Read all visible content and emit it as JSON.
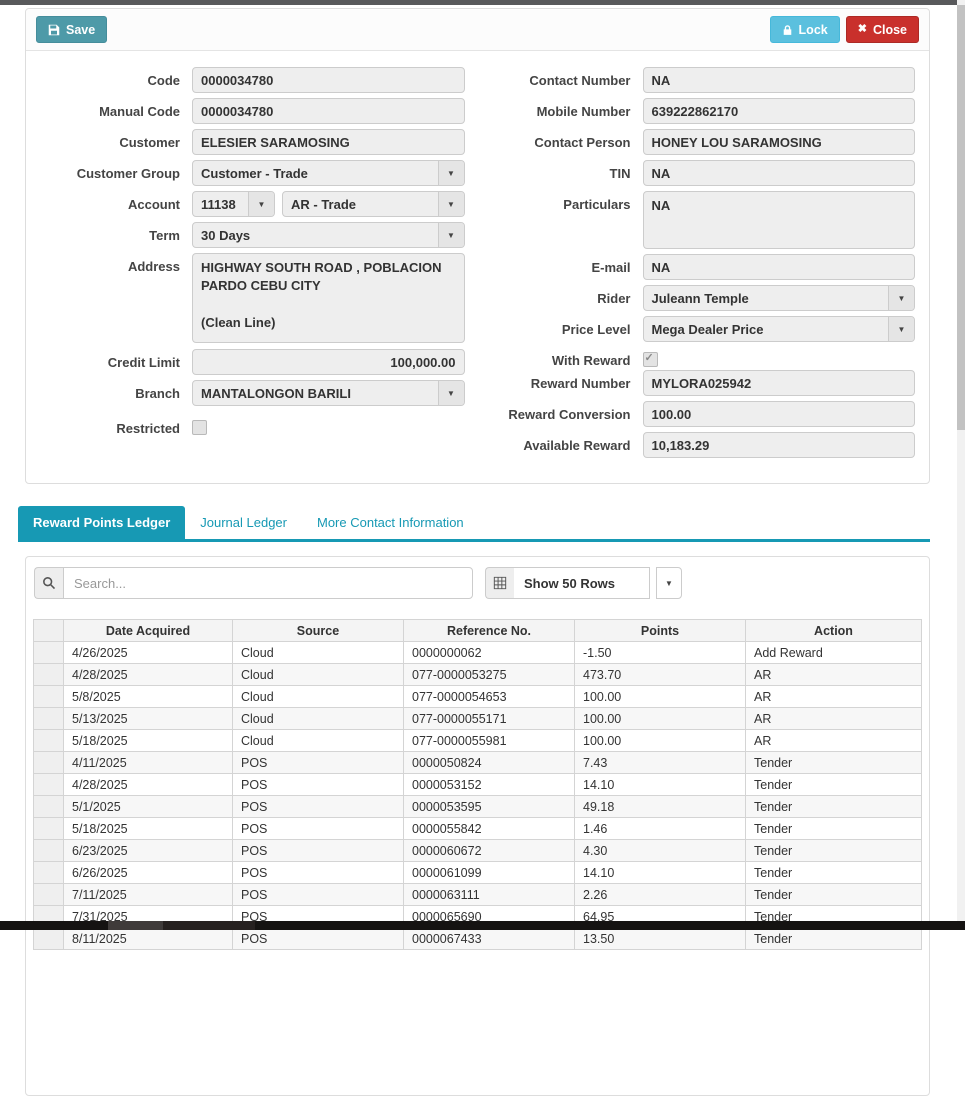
{
  "toolbar": {
    "save": "Save",
    "lock": "Lock",
    "close": "Close"
  },
  "colors": {
    "accent": "#1799b4",
    "save_button": "#4e9aa8",
    "lock_button": "#5bc0de",
    "close_button": "#c9302c"
  },
  "icons": {
    "save": "floppy-disk",
    "lock": "padlock",
    "close": "x-mark",
    "search": "magnifier",
    "rows": "table-grid",
    "dropdown": "chevron-down",
    "close_glyph": "✖",
    "caret_glyph": "▼"
  },
  "form": {
    "code": {
      "label": "Code",
      "value": "0000034780"
    },
    "manual_code": {
      "label": "Manual Code",
      "value": "0000034780"
    },
    "customer": {
      "label": "Customer",
      "value": "ELESIER SARAMOSING"
    },
    "customer_group": {
      "label": "Customer Group",
      "value": "Customer - Trade"
    },
    "account": {
      "label": "Account",
      "code": "11138",
      "name": "AR - Trade"
    },
    "term": {
      "label": "Term",
      "value": "30 Days"
    },
    "address": {
      "label": "Address",
      "value": "HIGHWAY SOUTH ROAD , POBLACION PARDO CEBU CITY\n\n(Clean Line)"
    },
    "credit_limit": {
      "label": "Credit Limit",
      "value": "100,000.00"
    },
    "branch": {
      "label": "Branch",
      "value": "MANTALONGON BARILI"
    },
    "restricted": {
      "label": "Restricted",
      "checked": false
    },
    "contact_number": {
      "label": "Contact Number",
      "value": "NA"
    },
    "mobile_number": {
      "label": "Mobile Number",
      "value": "639222862170"
    },
    "contact_person": {
      "label": "Contact Person",
      "value": "HONEY LOU SARAMOSING"
    },
    "tin": {
      "label": "TIN",
      "value": "NA"
    },
    "particulars": {
      "label": "Particulars",
      "value": "NA"
    },
    "email": {
      "label": "E-mail",
      "value": "NA"
    },
    "rider": {
      "label": "Rider",
      "value": "Juleann Temple"
    },
    "price_level": {
      "label": "Price Level",
      "value": "Mega Dealer Price"
    },
    "with_reward": {
      "label": "With Reward",
      "checked": true
    },
    "reward_number": {
      "label": "Reward Number",
      "value": "MYLORA025942"
    },
    "reward_conversion": {
      "label": "Reward Conversion",
      "value": "100.00"
    },
    "available_reward": {
      "label": "Available Reward",
      "value": "10,183.29"
    }
  },
  "tabs": [
    {
      "label": "Reward Points Ledger",
      "active": true
    },
    {
      "label": "Journal Ledger",
      "active": false
    },
    {
      "label": "More Contact Information",
      "active": false
    }
  ],
  "ledger": {
    "search_placeholder": "Search...",
    "rows_selector": "Show 50 Rows",
    "columns": [
      "",
      "Date Acquired",
      "Source",
      "Reference No.",
      "Points",
      "Action"
    ],
    "rows": [
      [
        "4/26/2025",
        "Cloud",
        "0000000062",
        "-1.50",
        "Add Reward"
      ],
      [
        "4/28/2025",
        "Cloud",
        "077-0000053275",
        "473.70",
        "AR"
      ],
      [
        "5/8/2025",
        "Cloud",
        "077-0000054653",
        "100.00",
        "AR"
      ],
      [
        "5/13/2025",
        "Cloud",
        "077-0000055171",
        "100.00",
        "AR"
      ],
      [
        "5/18/2025",
        "Cloud",
        "077-0000055981",
        "100.00",
        "AR"
      ],
      [
        "4/11/2025",
        "POS",
        "0000050824",
        "7.43",
        "Tender"
      ],
      [
        "4/28/2025",
        "POS",
        "0000053152",
        "14.10",
        "Tender"
      ],
      [
        "5/1/2025",
        "POS",
        "0000053595",
        "49.18",
        "Tender"
      ],
      [
        "5/18/2025",
        "POS",
        "0000055842",
        "1.46",
        "Tender"
      ],
      [
        "6/23/2025",
        "POS",
        "0000060672",
        "4.30",
        "Tender"
      ],
      [
        "6/26/2025",
        "POS",
        "0000061099",
        "14.10",
        "Tender"
      ],
      [
        "7/11/2025",
        "POS",
        "0000063111",
        "2.26",
        "Tender"
      ],
      [
        "7/31/2025",
        "POS",
        "0000065690",
        "64.95",
        "Tender"
      ],
      [
        "8/11/2025",
        "POS",
        "0000067433",
        "13.50",
        "Tender"
      ]
    ]
  }
}
